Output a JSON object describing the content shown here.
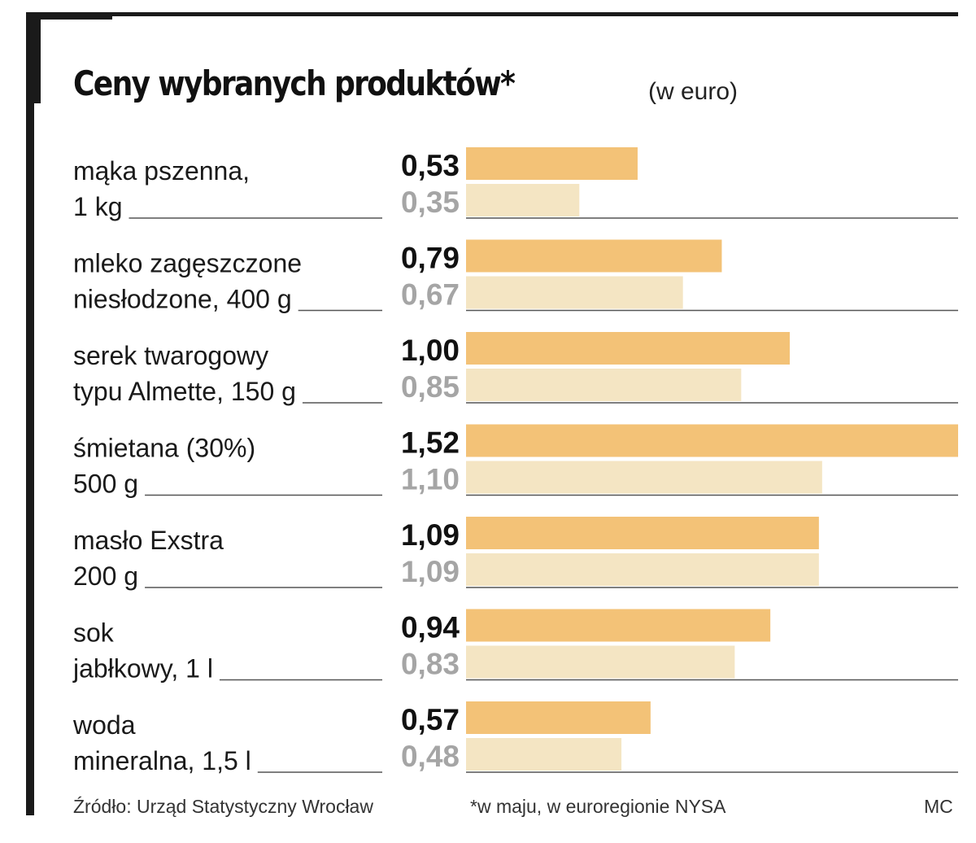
{
  "title": "Ceny wybranych produktów*",
  "subtitle": "(w euro)",
  "chart_data": {
    "type": "bar",
    "orientation": "horizontal",
    "title": "Ceny wybranych produktów*",
    "subtitle": "(w euro)",
    "xlim": [
      0,
      1.52
    ],
    "categories": [
      {
        "line1": "mąka pszenna,",
        "line2": "1 kg"
      },
      {
        "line1": "mleko zagęszczone",
        "line2": "niesłodzone, 400 g"
      },
      {
        "line1": "serek twarogowy",
        "line2": "typu Almette, 150 g"
      },
      {
        "line1": "śmietana (30%)",
        "line2": "500 g"
      },
      {
        "line1": "masło Exstra",
        "line2": "200 g"
      },
      {
        "line1": "sok",
        "line2": "jabłkowy, 1 l"
      },
      {
        "line1": "woda",
        "line2": "mineralna, 1,5 l"
      }
    ],
    "series": [
      {
        "name": "primary",
        "color": "#f3c277",
        "text_color": "#111111",
        "values": [
          0.53,
          0.79,
          1.0,
          1.52,
          1.09,
          0.94,
          0.57
        ],
        "labels": [
          "0,53",
          "0,79",
          "1,00",
          "1,52",
          "1,09",
          "0,94",
          "0,57"
        ]
      },
      {
        "name": "secondary",
        "color": "#f4e5c3",
        "text_color": "#a5a5a5",
        "values": [
          0.35,
          0.67,
          0.85,
          1.1,
          1.09,
          0.83,
          0.48
        ],
        "labels": [
          "0,35",
          "0,67",
          "0,85",
          "1,10",
          "1,09",
          "0,83",
          "0,48"
        ]
      }
    ]
  },
  "footer": {
    "source": "Źródło: Urząd Statystyczny Wrocław",
    "note": "*w maju, w euroregionie NYSA",
    "credit": "MC"
  },
  "colors": {
    "rule": "#555555",
    "frame": "#1a1a1a"
  }
}
